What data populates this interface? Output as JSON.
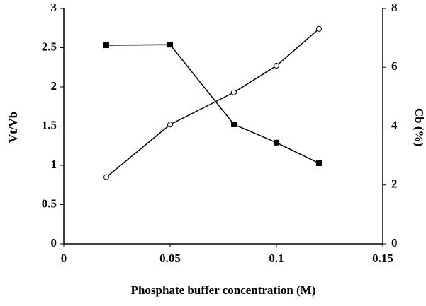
{
  "chart_data": {
    "type": "line",
    "xlabel": "Phosphate buffer concentration (M)",
    "ylabel": "Vt/Vb",
    "y2label": "Cb (%)",
    "x": [
      0.02,
      0.05,
      0.08,
      0.1,
      0.12
    ],
    "series": [
      {
        "color": "#000000",
        "marker": "circle-open",
        "values": [
          0.85,
          1.52,
          1.93,
          2.27,
          2.74
        ]
      },
      {
        "color": "#000000",
        "marker": "square",
        "axis": "y2",
        "values": [
          6.75,
          6.77,
          4.06,
          3.44,
          2.74
        ]
      }
    ],
    "xlim": [
      0,
      0.15
    ],
    "xticks": [
      0,
      0.05,
      0.1,
      0.15
    ],
    "ylim": [
      0,
      3
    ],
    "yticks": [
      0,
      0.5,
      1,
      1.5,
      2,
      2.5,
      3
    ],
    "y2lim": [
      0,
      8
    ],
    "y2ticks": [
      0,
      2,
      4,
      6,
      8
    ]
  }
}
